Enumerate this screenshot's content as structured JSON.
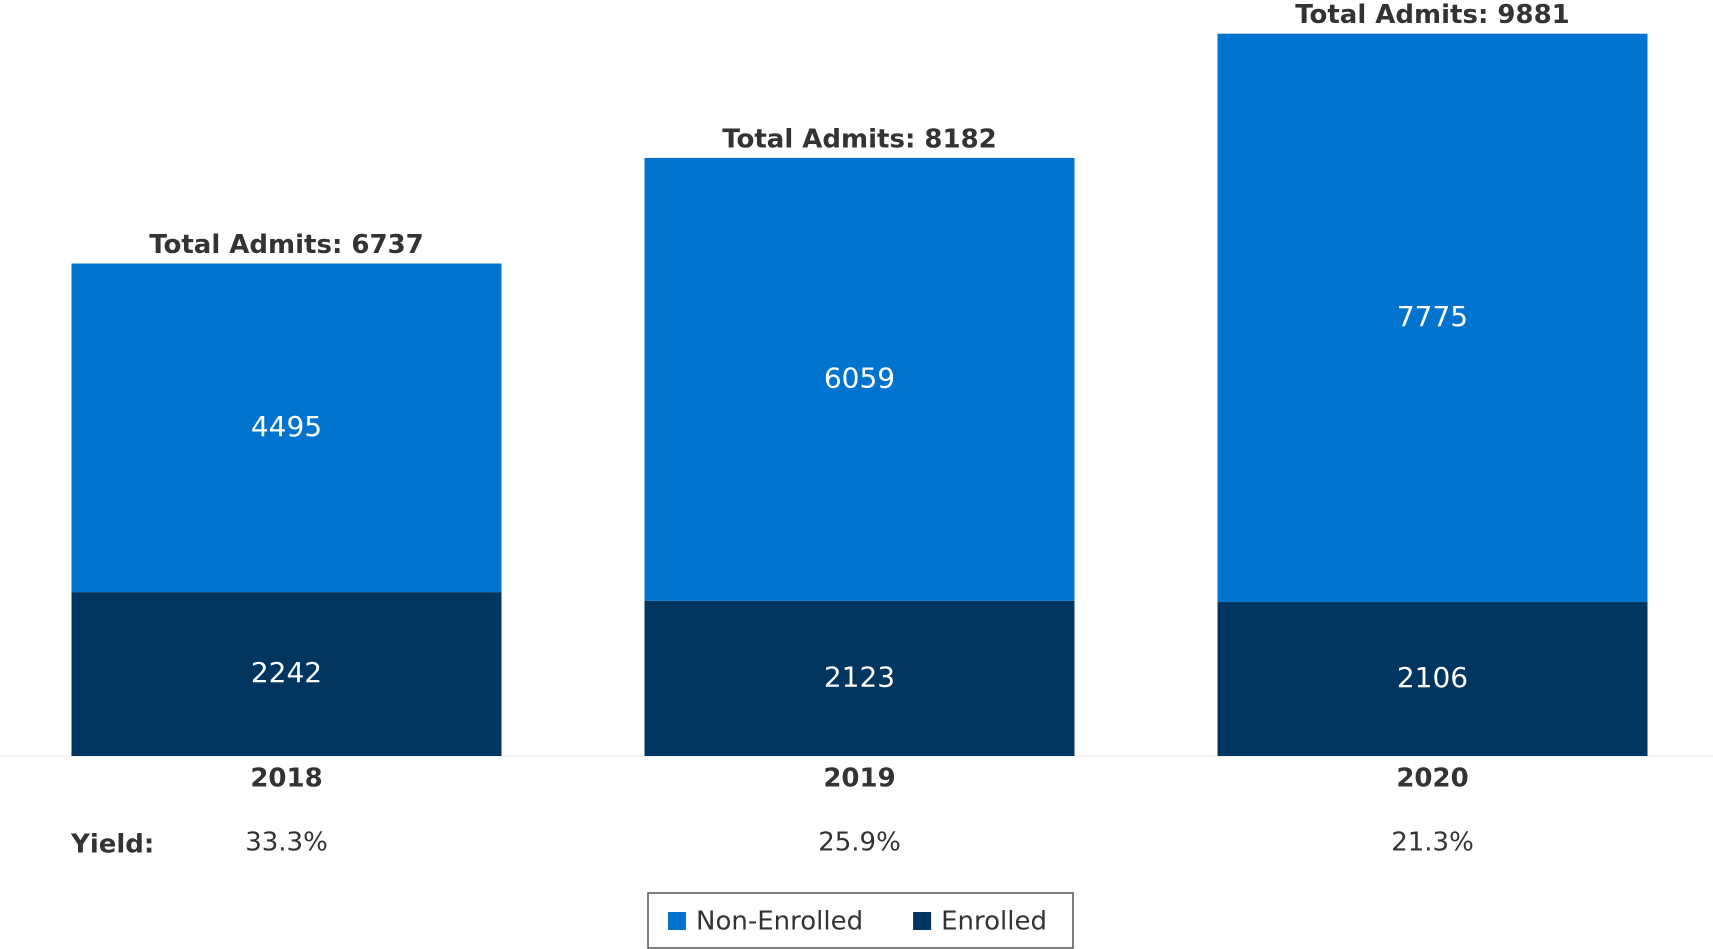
{
  "chart_data": {
    "type": "stacked_bar",
    "categories": [
      "2018",
      "2019",
      "2020"
    ],
    "series": [
      {
        "name": "Non-Enrolled",
        "color": "#0073cf",
        "values": [
          4495,
          6059,
          7775
        ]
      },
      {
        "name": "Enrolled",
        "color": "#00355f",
        "values": [
          2242,
          2123,
          2106
        ]
      }
    ],
    "annotations": [
      "Total Admits: 6737",
      "Total Admits: 8182",
      "Total Admits: 9881"
    ],
    "yield_label": "Yield:",
    "yield_values": [
      "33.3%",
      "25.9%",
      "21.3%"
    ],
    "ylim": [
      0,
      10000
    ]
  }
}
